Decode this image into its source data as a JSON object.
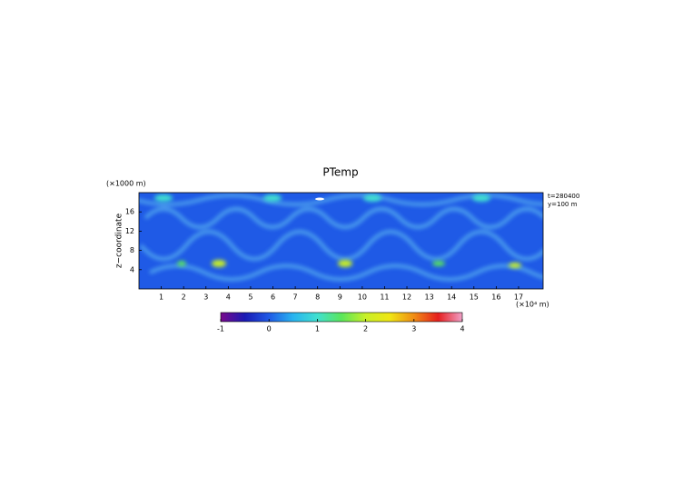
{
  "chart_data": {
    "type": "heatmap",
    "title": "PTemp",
    "y_unit_label": "(×1000 m)",
    "ylabel": "z−coordinate",
    "x_unit_label": "(×10⁴ m)",
    "annotations": [
      "t=280400",
      "y=100 m"
    ],
    "xlim": [
      0,
      18.1
    ],
    "xticks": [
      1,
      2,
      3,
      4,
      5,
      6,
      7,
      8,
      9,
      10,
      11,
      12,
      13,
      14,
      15,
      16,
      17
    ],
    "ylim": [
      0,
      20
    ],
    "yticks": [
      4,
      8,
      12,
      16
    ],
    "colorbar": {
      "lim": [
        -1,
        4
      ],
      "ticks": [
        -1,
        0,
        1,
        2,
        3,
        4
      ],
      "colors": [
        "#7a0a8c",
        "#1a1ab4",
        "#1f5ae6",
        "#28b4f0",
        "#40e0d0",
        "#5ae65a",
        "#c8f028",
        "#f0e614",
        "#f08c14",
        "#e61e1e",
        "#f0a0c8"
      ]
    }
  }
}
